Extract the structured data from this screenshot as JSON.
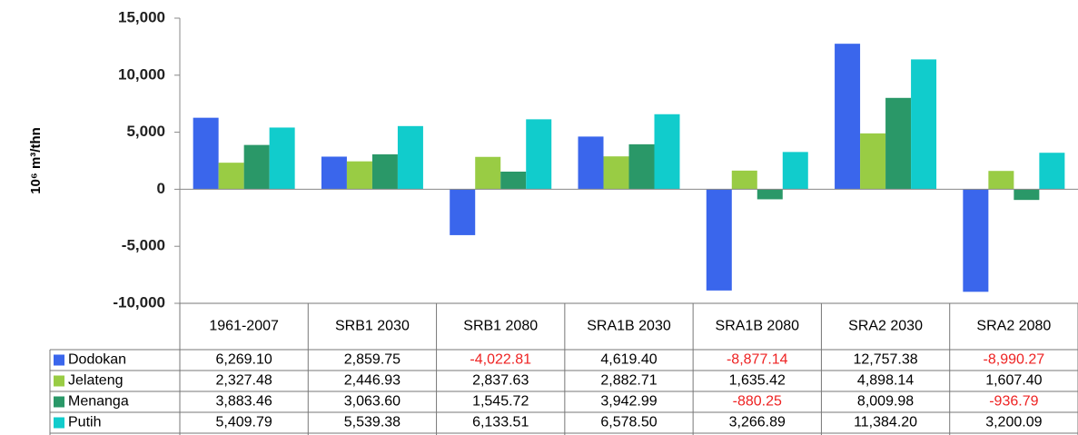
{
  "chart_data": {
    "type": "bar",
    "y_label": "10⁶ m³/thn",
    "categories": [
      "1961-2007",
      "SRB1 2030",
      "SRB1 2080",
      "SRA1B 2030",
      "SRA1B 2080",
      "SRA2 2030",
      "SRA2 2080"
    ],
    "series": [
      {
        "name": "Dodokan",
        "color": "#3a66ec",
        "values": [
          6269.1,
          2859.75,
          -4022.81,
          4619.4,
          -8877.14,
          12757.38,
          -8990.27
        ],
        "value_labels": [
          "6,269.10",
          "2,859.75",
          "-4,022.81",
          "4,619.40",
          "-8,877.14",
          "12,757.38",
          "-8,990.27"
        ]
      },
      {
        "name": "Jelateng",
        "color": "#99cc44",
        "values": [
          2327.48,
          2446.93,
          2837.63,
          2882.71,
          1635.42,
          4898.14,
          1607.4
        ],
        "value_labels": [
          "2,327.48",
          "2,446.93",
          "2,837.63",
          "2,882.71",
          "1,635.42",
          "4,898.14",
          "1,607.40"
        ]
      },
      {
        "name": "Menanga",
        "color": "#2a9868",
        "values": [
          3883.46,
          3063.6,
          1545.72,
          3942.99,
          -880.25,
          8009.98,
          -936.79
        ],
        "value_labels": [
          "3,883.46",
          "3,063.60",
          "1,545.72",
          "3,942.99",
          "-880.25",
          "8,009.98",
          "-936.79"
        ]
      },
      {
        "name": "Putih",
        "color": "#11cccc",
        "values": [
          5409.79,
          5539.38,
          6133.51,
          6578.5,
          3266.89,
          11384.2,
          3200.09
        ],
        "value_labels": [
          "5,409.79",
          "5,539.38",
          "6,133.51",
          "6,578.50",
          "3,266.89",
          "11,384.20",
          "3,200.09"
        ]
      }
    ],
    "ylim": [
      -10000,
      15000
    ],
    "yticks": [
      {
        "value": -10000,
        "label": "-10,000"
      },
      {
        "value": -5000,
        "label": "-5,000"
      },
      0,
      {
        "value": 5000,
        "label": "5,000"
      },
      {
        "value": 10000,
        "label": "10,000"
      },
      {
        "value": 15000,
        "label": "15,000"
      }
    ],
    "grid": false
  }
}
